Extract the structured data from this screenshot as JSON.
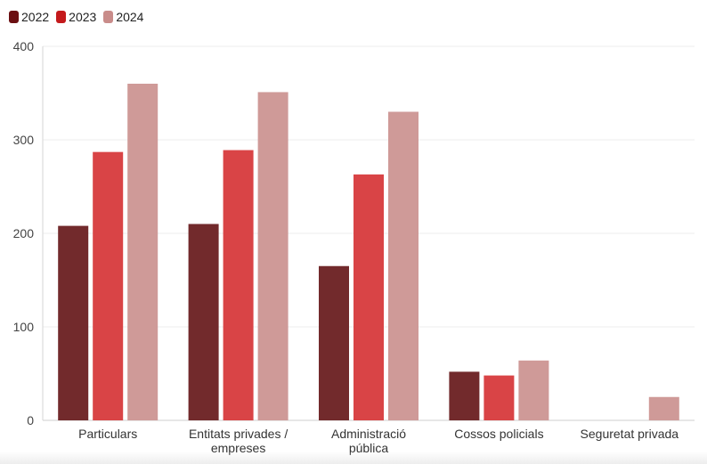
{
  "chart_data": {
    "type": "bar",
    "categories": [
      [
        "Particulars"
      ],
      [
        "Entitats privades /",
        "empreses"
      ],
      [
        "Administració",
        "pública"
      ],
      [
        "Cossos policials"
      ],
      [
        "Seguretat privada"
      ]
    ],
    "series": [
      {
        "name": "2022",
        "color": "#722a2c",
        "values": [
          208,
          210,
          165,
          52,
          null
        ]
      },
      {
        "name": "2023",
        "color": "#d94446",
        "values": [
          287,
          289,
          263,
          48,
          null
        ]
      },
      {
        "name": "2024",
        "color": "#cf9a98",
        "values": [
          360,
          351,
          330,
          64,
          25
        ]
      }
    ],
    "y_ticks": [
      "0",
      "100",
      "200",
      "300",
      "400"
    ],
    "ylim": [
      0,
      400
    ],
    "grid": true,
    "legend_position": "top-left",
    "legend_swatch_colors": [
      "#6b0f12",
      "#c41a1c",
      "#c98c8a"
    ]
  }
}
